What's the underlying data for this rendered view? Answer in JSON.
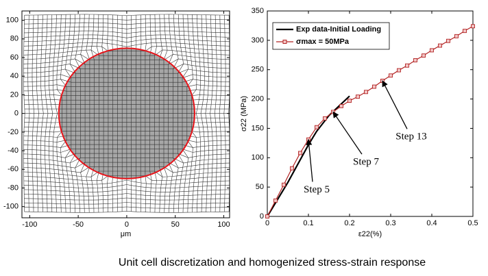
{
  "chart_data": [
    {
      "type": "mesh",
      "xlabel": "μm",
      "xlim": [
        -108,
        106
      ],
      "ylim": [
        -112,
        110
      ],
      "xticks": [
        -100,
        -50,
        0,
        50,
        100
      ],
      "yticks": [
        -100,
        -80,
        -60,
        -40,
        -20,
        0,
        20,
        40,
        60,
        80,
        100
      ],
      "inclusion_radius": 70,
      "inclusion_color": "#a6a6a6",
      "boundary_color": "#e8141a"
    },
    {
      "type": "line",
      "xlabel": "ε22(%)",
      "ylabel": "σ22 (MPa)",
      "xlim": [
        0,
        0.5
      ],
      "ylim": [
        0,
        350
      ],
      "xticks": [
        0,
        0.1,
        0.2,
        0.3,
        0.4,
        0.5
      ],
      "yticks": [
        0,
        50,
        100,
        150,
        200,
        250,
        300,
        350
      ],
      "legend": "upper left",
      "series": [
        {
          "name": "Exp data-Initial Loading",
          "color": "#000000",
          "marker": false,
          "x": [
            0,
            0.05,
            0.1,
            0.12,
            0.15,
            0.2
          ],
          "values": [
            0,
            58,
            122,
            145,
            172,
            205
          ]
        },
        {
          "name": "σmax = 50MPa",
          "color": "#b22222",
          "marker": true,
          "x": [
            0,
            0.02,
            0.04,
            0.06,
            0.08,
            0.1,
            0.12,
            0.14,
            0.16,
            0.18,
            0.2,
            0.22,
            0.24,
            0.26,
            0.28,
            0.3,
            0.32,
            0.34,
            0.36,
            0.38,
            0.4,
            0.42,
            0.44,
            0.46,
            0.48,
            0.5
          ],
          "values": [
            0,
            27,
            54,
            82,
            108,
            131,
            152,
            167,
            178,
            188,
            197,
            204,
            212,
            221,
            231,
            240,
            249,
            257,
            266,
            274,
            283,
            291,
            299,
            307,
            316,
            324
          ]
        }
      ],
      "annotations": [
        {
          "text": "Step 5",
          "x": 0.1,
          "y": 131,
          "text_x": 0.12,
          "text_y": 45
        },
        {
          "text": "Step 7",
          "x": 0.16,
          "y": 178,
          "text_x": 0.24,
          "text_y": 92
        },
        {
          "text": "Step 13",
          "x": 0.28,
          "y": 231,
          "text_x": 0.35,
          "text_y": 135
        }
      ]
    }
  ],
  "caption": "Unit cell discretization and homogenized stress-strain response"
}
